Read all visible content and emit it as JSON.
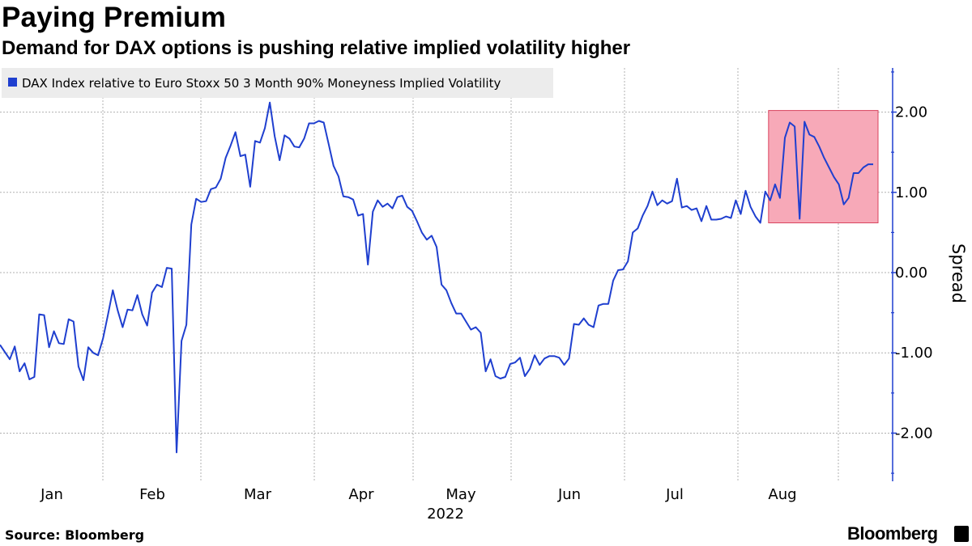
{
  "title": "Paying Premium",
  "subtitle": "Demand for DAX options is pushing relative implied volatility higher",
  "source": "Source: Bloomberg",
  "brand": "Bloomberg",
  "colors": {
    "line": "#1f3fcf",
    "grid": "#b0b0b0",
    "highlight_fill": "#f7a9b8",
    "highlight_stroke": "#d9445e",
    "axis": "#1f3fcf"
  },
  "chart_data": {
    "type": "line",
    "title": "Paying Premium",
    "ylabel": "Spread",
    "xlabel": "2022",
    "legend": [
      "DAX Index relative to Euro Stoxx 50 3 Month 90% Moneyness Implied Volatility"
    ],
    "ylim": [
      -2.6,
      2.55
    ],
    "yticks": [
      2.0,
      1.0,
      0.0,
      -1.0,
      -2.0
    ],
    "ytick_labels": [
      "2.00",
      "1.00",
      "0.00",
      "-1.00",
      "-2.00"
    ],
    "x_months": [
      "Jan",
      "Feb",
      "Mar",
      "Apr",
      "May",
      "Jun",
      "Jul",
      "Aug"
    ],
    "x_year": "2022",
    "highlight": {
      "x_start": 157,
      "x_end": 178,
      "y_low": 0.62,
      "y_high": 2.02
    },
    "series": [
      {
        "name": "DAX Index relative to Euro Stoxx 50 3 Month 90% Moneyness Implied Volatility",
        "points": [
          [
            0,
            -0.9
          ],
          [
            2,
            -1.08
          ],
          [
            3,
            -0.92
          ],
          [
            4,
            -1.23
          ],
          [
            5,
            -1.13
          ],
          [
            6,
            -1.33
          ],
          [
            7,
            -1.3
          ],
          [
            8,
            -0.52
          ],
          [
            9,
            -0.53
          ],
          [
            10,
            -0.93
          ],
          [
            11,
            -0.73
          ],
          [
            12,
            -0.88
          ],
          [
            13,
            -0.89
          ],
          [
            14,
            -0.58
          ],
          [
            15,
            -0.61
          ],
          [
            16,
            -1.17
          ],
          [
            17,
            -1.34
          ],
          [
            18,
            -0.93
          ],
          [
            19,
            -1.0
          ],
          [
            20,
            -1.03
          ],
          [
            21,
            -0.82
          ],
          [
            22,
            -0.53
          ],
          [
            23,
            -0.22
          ],
          [
            24,
            -0.47
          ],
          [
            25,
            -0.68
          ],
          [
            26,
            -0.46
          ],
          [
            27,
            -0.47
          ],
          [
            28,
            -0.28
          ],
          [
            29,
            -0.52
          ],
          [
            30,
            -0.66
          ],
          [
            31,
            -0.25
          ],
          [
            32,
            -0.15
          ],
          [
            33,
            -0.18
          ],
          [
            34,
            0.06
          ],
          [
            35,
            0.05
          ],
          [
            36,
            -2.24
          ],
          [
            37,
            -0.85
          ],
          [
            38,
            -0.65
          ],
          [
            39,
            0.6
          ],
          [
            40,
            0.92
          ],
          [
            41,
            0.88
          ],
          [
            42,
            0.89
          ],
          [
            43,
            1.04
          ],
          [
            44,
            1.06
          ],
          [
            45,
            1.17
          ],
          [
            46,
            1.43
          ],
          [
            47,
            1.58
          ],
          [
            48,
            1.75
          ],
          [
            49,
            1.45
          ],
          [
            50,
            1.47
          ],
          [
            51,
            1.07
          ],
          [
            52,
            1.64
          ],
          [
            53,
            1.62
          ],
          [
            54,
            1.8
          ],
          [
            55,
            2.12
          ],
          [
            56,
            1.7
          ],
          [
            57,
            1.4
          ],
          [
            58,
            1.71
          ],
          [
            59,
            1.67
          ],
          [
            60,
            1.57
          ],
          [
            61,
            1.56
          ],
          [
            62,
            1.67
          ],
          [
            63,
            1.86
          ],
          [
            64,
            1.86
          ],
          [
            65,
            1.89
          ],
          [
            66,
            1.87
          ],
          [
            67,
            1.6
          ],
          [
            68,
            1.33
          ],
          [
            69,
            1.2
          ],
          [
            70,
            0.95
          ],
          [
            71,
            0.94
          ],
          [
            72,
            0.91
          ],
          [
            73,
            0.71
          ],
          [
            74,
            0.73
          ],
          [
            75,
            0.1
          ],
          [
            76,
            0.76
          ],
          [
            77,
            0.9
          ],
          [
            78,
            0.82
          ],
          [
            79,
            0.86
          ],
          [
            80,
            0.8
          ],
          [
            81,
            0.94
          ],
          [
            82,
            0.96
          ],
          [
            83,
            0.82
          ],
          [
            84,
            0.77
          ],
          [
            85,
            0.64
          ],
          [
            86,
            0.5
          ],
          [
            87,
            0.41
          ],
          [
            88,
            0.46
          ],
          [
            89,
            0.32
          ],
          [
            90,
            -0.15
          ],
          [
            91,
            -0.22
          ],
          [
            92,
            -0.38
          ],
          [
            93,
            -0.51
          ],
          [
            94,
            -0.51
          ],
          [
            95,
            -0.61
          ],
          [
            96,
            -0.71
          ],
          [
            97,
            -0.68
          ],
          [
            98,
            -0.75
          ],
          [
            99,
            -1.23
          ],
          [
            100,
            -1.08
          ],
          [
            101,
            -1.29
          ],
          [
            102,
            -1.32
          ],
          [
            103,
            -1.3
          ],
          [
            104,
            -1.14
          ],
          [
            105,
            -1.12
          ],
          [
            106,
            -1.06
          ],
          [
            107,
            -1.29
          ],
          [
            108,
            -1.2
          ],
          [
            109,
            -1.03
          ],
          [
            110,
            -1.15
          ],
          [
            111,
            -1.07
          ],
          [
            112,
            -1.04
          ],
          [
            113,
            -1.04
          ],
          [
            114,
            -1.06
          ],
          [
            115,
            -1.15
          ],
          [
            116,
            -1.07
          ],
          [
            117,
            -0.64
          ],
          [
            118,
            -0.65
          ],
          [
            119,
            -0.57
          ],
          [
            120,
            -0.65
          ],
          [
            121,
            -0.68
          ],
          [
            122,
            -0.41
          ],
          [
            123,
            -0.39
          ],
          [
            124,
            -0.39
          ],
          [
            125,
            -0.1
          ],
          [
            126,
            0.03
          ],
          [
            127,
            0.04
          ],
          [
            128,
            0.14
          ],
          [
            129,
            0.5
          ],
          [
            130,
            0.55
          ],
          [
            131,
            0.71
          ],
          [
            132,
            0.83
          ],
          [
            133,
            1.01
          ],
          [
            134,
            0.84
          ],
          [
            135,
            0.9
          ],
          [
            136,
            0.86
          ],
          [
            137,
            0.89
          ],
          [
            138,
            1.17
          ],
          [
            139,
            0.81
          ],
          [
            140,
            0.83
          ],
          [
            141,
            0.78
          ],
          [
            142,
            0.8
          ],
          [
            143,
            0.64
          ],
          [
            144,
            0.83
          ],
          [
            145,
            0.66
          ],
          [
            146,
            0.66
          ],
          [
            147,
            0.67
          ],
          [
            148,
            0.7
          ],
          [
            149,
            0.68
          ],
          [
            150,
            0.9
          ],
          [
            151,
            0.73
          ],
          [
            152,
            1.02
          ],
          [
            153,
            0.82
          ],
          [
            154,
            0.7
          ],
          [
            155,
            0.62
          ],
          [
            156,
            1.01
          ],
          [
            157,
            0.9
          ],
          [
            158,
            1.1
          ],
          [
            159,
            0.93
          ],
          [
            160,
            1.68
          ],
          [
            161,
            1.87
          ],
          [
            162,
            1.82
          ],
          [
            163,
            0.67
          ],
          [
            164,
            1.88
          ],
          [
            165,
            1.72
          ],
          [
            166,
            1.69
          ],
          [
            167,
            1.57
          ],
          [
            168,
            1.43
          ],
          [
            169,
            1.31
          ],
          [
            170,
            1.19
          ],
          [
            171,
            1.1
          ],
          [
            172,
            0.85
          ],
          [
            173,
            0.93
          ],
          [
            174,
            1.24
          ],
          [
            175,
            1.24
          ],
          [
            176,
            1.31
          ],
          [
            177,
            1.35
          ],
          [
            178,
            1.35
          ]
        ]
      }
    ]
  }
}
